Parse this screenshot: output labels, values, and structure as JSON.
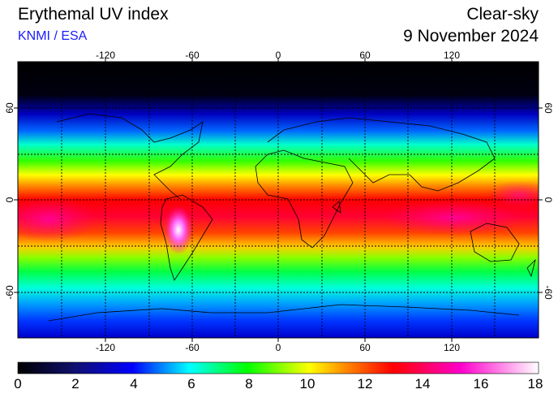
{
  "header": {
    "title": "Erythemal UV index",
    "credit": "KNMI / ESA",
    "condition": "Clear-sky",
    "date": "9 November 2024"
  },
  "colors": {
    "credit": "#1a1aff",
    "scale": [
      "#000000",
      "#0a0a5a",
      "#0000ff",
      "#00ffff",
      "#00ff00",
      "#ffff00",
      "#ff8800",
      "#ff0000",
      "#ff00aa",
      "#ffffff"
    ]
  },
  "map": {
    "longitude_ticks": [
      "-120",
      "-60",
      "0",
      "60",
      "120"
    ],
    "latitude_ticks": [
      "60",
      "0",
      "-60"
    ]
  },
  "colorbar": {
    "labels": [
      "0",
      "2",
      "4",
      "6",
      "8",
      "10",
      "12",
      "14",
      "16",
      "18"
    ],
    "min": 0,
    "max": 18
  }
}
